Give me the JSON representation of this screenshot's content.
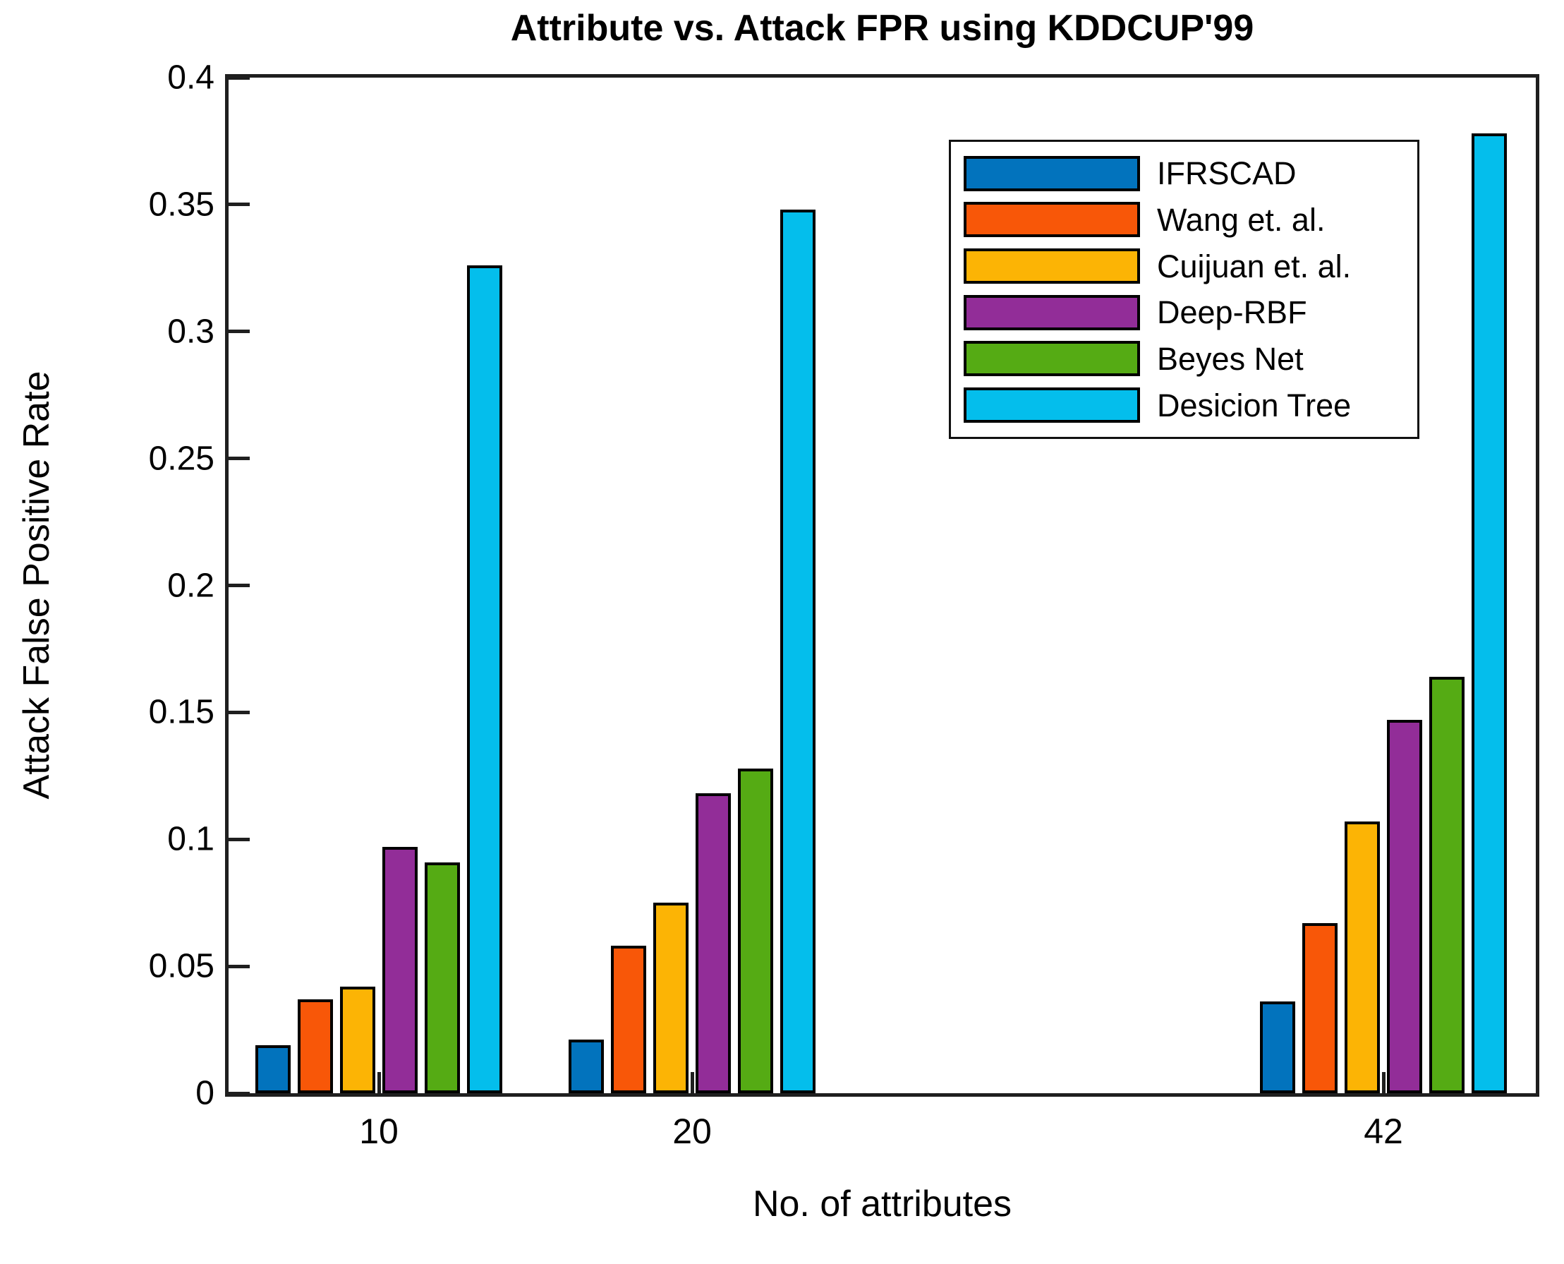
{
  "figure": {
    "title": "Attribute vs. Attack FPR using KDDCUP'99",
    "xlabel": "No. of attributes",
    "ylabel": "Attack False Positive Rate"
  },
  "chart_data": {
    "type": "bar",
    "title": "Attribute vs. Attack FPR using KDDCUP'99",
    "xlabel": "No. of attributes",
    "ylabel": "Attack False Positive Rate",
    "categories": [
      "10",
      "20",
      "42"
    ],
    "series": [
      {
        "name": "IFRSCAD",
        "color": "#0273BD",
        "values": [
          0.019,
          0.021,
          0.036
        ]
      },
      {
        "name": "Wang et. al.",
        "color": "#F85708",
        "values": [
          0.037,
          0.058,
          0.067
        ]
      },
      {
        "name": "Cuijuan et. al.",
        "color": "#FCB405",
        "values": [
          0.042,
          0.075,
          0.107
        ]
      },
      {
        "name": "Deep-RBF",
        "color": "#922D98",
        "values": [
          0.097,
          0.118,
          0.147
        ]
      },
      {
        "name": "Beyes Net",
        "color": "#55AB14",
        "values": [
          0.091,
          0.128,
          0.164
        ]
      },
      {
        "name": "Desicion Tree",
        "color": "#04BEEC",
        "values": [
          0.326,
          0.348,
          0.378
        ]
      }
    ],
    "ylim": [
      0,
      0.4
    ],
    "ytick_step": 0.05,
    "yticklabels": [
      "0",
      "0.05",
      "0.1",
      "0.15",
      "0.2",
      "0.25",
      "0.3",
      "0.35",
      "0.4"
    ],
    "xticklabels": [
      "10",
      "20",
      "42"
    ],
    "grid": false,
    "legend_position": "top-right",
    "axis_color": "#1f1f1f",
    "bar_edge_color": "#000000"
  }
}
